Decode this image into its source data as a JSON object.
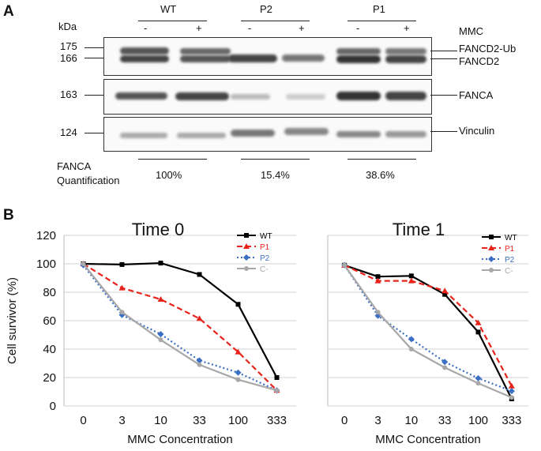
{
  "panel_a": {
    "label": "A",
    "kda_label": "kDa",
    "groups": [
      {
        "name": "WT",
        "lanes": [
          "-",
          "+"
        ]
      },
      {
        "name": "P2",
        "lanes": [
          "-",
          "+"
        ]
      },
      {
        "name": "P1",
        "lanes": [
          "-",
          "+"
        ]
      }
    ],
    "mmc_label": "MMC",
    "markers": [
      "175",
      "166",
      "163",
      "124"
    ],
    "bands": [
      "FANCD2-Ub",
      "FANCD2",
      "FANCA",
      "Vinculin"
    ],
    "quant_label_1": "FANCA",
    "quant_label_2": "Quantification",
    "quant_values": [
      "100%",
      "15.4%",
      "38.6%"
    ]
  },
  "panel_b": {
    "label": "B",
    "colors": {
      "WT": "#000000",
      "P1": "#e8231b",
      "P2": "#3a6fc4",
      "C-": "#a8a8a8"
    }
  },
  "chart_data": [
    {
      "type": "line",
      "title": "Time 0",
      "xlabel": "MMC Concentration",
      "ylabel": "Cell survivor (%)",
      "categories": [
        "0",
        "3",
        "10",
        "33",
        "100",
        "333"
      ],
      "ylim": [
        0,
        120
      ],
      "yticks": [
        "0",
        "20",
        "40",
        "60",
        "80",
        "100",
        "120"
      ],
      "grid": true,
      "legend": "top-right",
      "series": [
        {
          "name": "WT",
          "values": [
            100,
            99.5,
            100.5,
            92.5,
            71.5,
            20
          ]
        },
        {
          "name": "P1",
          "values": [
            100,
            83,
            75,
            61.5,
            38,
            11
          ]
        },
        {
          "name": "P2",
          "values": [
            99,
            64,
            50.5,
            32,
            23.5,
            11
          ]
        },
        {
          "name": "C-",
          "values": [
            100,
            66,
            46.5,
            29,
            18.5,
            11
          ]
        }
      ]
    },
    {
      "type": "line",
      "title": "Time 1",
      "xlabel": "MMC Concentration",
      "ylabel": "",
      "categories": [
        "0",
        "3",
        "10",
        "33",
        "100",
        "333"
      ],
      "ylim": [
        0,
        120
      ],
      "grid": true,
      "legend": "top-right",
      "series": [
        {
          "name": "WT",
          "values": [
            99,
            91,
            91.5,
            78.5,
            52,
            5
          ]
        },
        {
          "name": "P1",
          "values": [
            99,
            88,
            88,
            81,
            58.5,
            14
          ]
        },
        {
          "name": "P2",
          "values": [
            99,
            63.5,
            47,
            31,
            19.5,
            10.5
          ]
        },
        {
          "name": "C-",
          "values": [
            99,
            66,
            40,
            27,
            16,
            6
          ]
        }
      ]
    }
  ]
}
